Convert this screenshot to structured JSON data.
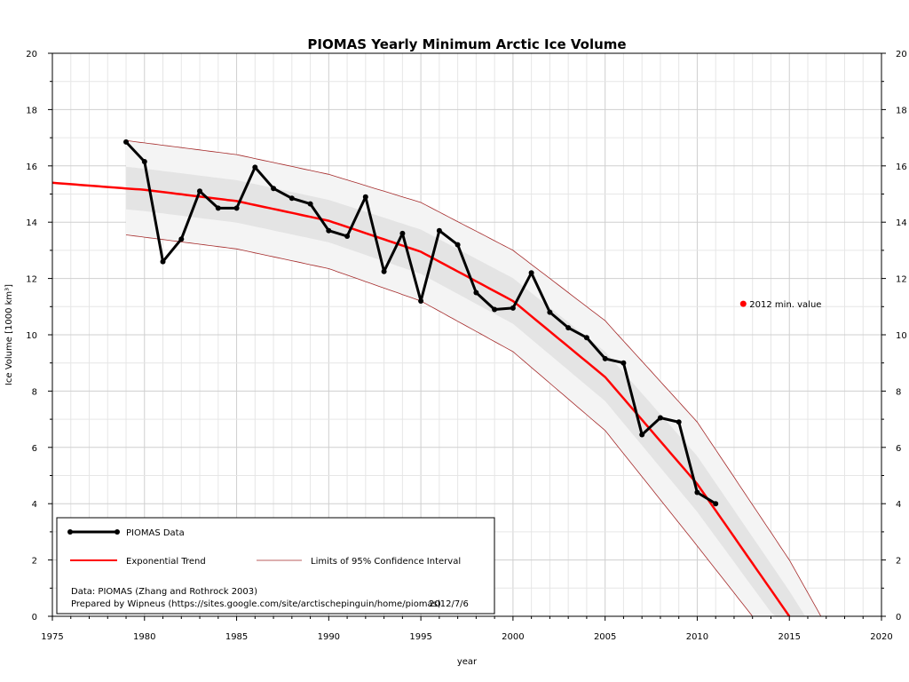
{
  "chart_data": {
    "type": "line",
    "title": "PIOMAS Yearly Minimum Arctic Ice Volume",
    "xlabel": "year",
    "ylabel": "Ice Volume [1000 km³]",
    "xlim": [
      1975,
      2020
    ],
    "ylim": [
      0,
      20
    ],
    "x_ticks": [
      1975,
      1980,
      1985,
      1990,
      1995,
      2000,
      2005,
      2010,
      2015,
      2020
    ],
    "y_ticks": [
      0,
      2,
      4,
      6,
      8,
      10,
      12,
      14,
      16,
      18,
      20
    ],
    "grid": true,
    "legend_placement": "bottom-left",
    "series": [
      {
        "name": "PIOMAS Data",
        "color": "#000000",
        "x": [
          1979,
          1980,
          1981,
          1982,
          1983,
          1984,
          1985,
          1986,
          1987,
          1988,
          1989,
          1990,
          1991,
          1992,
          1993,
          1994,
          1995,
          1996,
          1997,
          1998,
          1999,
          2000,
          2001,
          2002,
          2003,
          2004,
          2005,
          2006,
          2007,
          2008,
          2009,
          2010,
          2011
        ],
        "y": [
          16.85,
          16.15,
          12.6,
          13.4,
          15.1,
          14.5,
          14.5,
          15.95,
          15.2,
          14.85,
          14.65,
          13.7,
          13.5,
          14.9,
          12.25,
          13.6,
          11.2,
          13.7,
          13.2,
          11.5,
          10.9,
          10.95,
          12.2,
          10.8,
          10.25,
          9.9,
          9.15,
          9.0,
          6.45,
          7.05,
          6.9,
          4.4,
          4.0
        ]
      },
      {
        "name": "Exponential Trend",
        "color": "#ff0000",
        "x": [
          1975,
          1980,
          1985,
          1990,
          1995,
          2000,
          2005,
          2010,
          2015
        ],
        "y": [
          15.4,
          15.15,
          14.75,
          14.05,
          12.95,
          11.2,
          8.5,
          4.7,
          0
        ]
      },
      {
        "name": "Limits of 95% Confidence Interval",
        "color": "#a52a2a",
        "upper": {
          "x": [
            1979,
            1985,
            1990,
            1995,
            2000,
            2005,
            2010,
            2015,
            2018
          ],
          "y": [
            16.9,
            16.4,
            15.7,
            14.7,
            13.0,
            10.5,
            6.9,
            2.0,
            -1.5
          ]
        },
        "lower": {
          "x": [
            1979,
            1985,
            1990,
            1995,
            2000,
            2005,
            2010,
            2013
          ],
          "y": [
            13.55,
            13.05,
            12.35,
            11.2,
            9.4,
            6.6,
            2.5,
            0
          ]
        }
      }
    ],
    "highlight_point": {
      "label": "2012 min. value",
      "x": 2012.5,
      "y": 11.1,
      "color": "#ff0000"
    },
    "annotations": {
      "data_source": "Data: PIOMAS (Zhang and Rothrock 2003)",
      "prepared_by": "Prepared by Wipneus (https://sites.google.com/site/arctischepinguin/home/piomas)",
      "date": "2012/7/6"
    }
  }
}
